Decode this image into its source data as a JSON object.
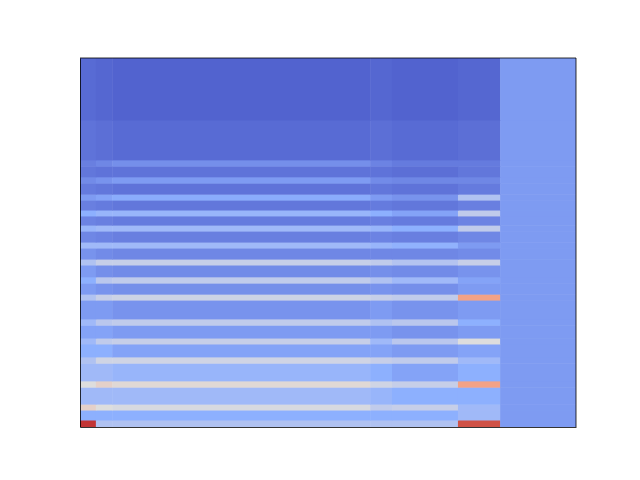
{
  "chart_data": {
    "type": "heatmap",
    "xlim": [
      0,
      100
    ],
    "ylim": [
      0,
      100
    ],
    "zlim": [
      0,
      1
    ],
    "tick_labels": false,
    "x_edges": [
      0,
      3.2,
      6.5,
      58.5,
      62.9,
      76.2,
      84.7,
      100
    ],
    "y_edges": [
      0,
      1.9,
      4.6,
      6.2,
      10.8,
      12.5,
      17.3,
      19.0,
      22.5,
      24.1,
      27.6,
      29.3,
      34.4,
      36.0,
      39.0,
      40.7,
      43.9,
      45.5,
      48.5,
      50.1,
      53.1,
      54.7,
      57.2,
      58.8,
      61.5,
      63.1,
      66.1,
      67.8,
      70.7,
      72.4,
      83.2,
      100
    ],
    "values": [
      [
        0.95,
        0.35,
        0.35,
        0.35,
        0.35,
        0.9,
        0.2
      ],
      [
        0.25,
        0.25,
        0.25,
        0.25,
        0.25,
        0.3,
        0.2
      ],
      [
        0.55,
        0.5,
        0.48,
        0.4,
        0.42,
        0.3,
        0.2
      ],
      [
        0.3,
        0.3,
        0.3,
        0.28,
        0.25,
        0.25,
        0.2
      ],
      [
        0.5,
        0.55,
        0.52,
        0.45,
        0.42,
        0.72,
        0.2
      ],
      [
        0.3,
        0.3,
        0.28,
        0.25,
        0.22,
        0.25,
        0.2
      ],
      [
        0.35,
        0.45,
        0.45,
        0.42,
        0.4,
        0.3,
        0.2
      ],
      [
        0.25,
        0.25,
        0.22,
        0.22,
        0.2,
        0.22,
        0.2
      ],
      [
        0.3,
        0.4,
        0.42,
        0.3,
        0.38,
        0.5,
        0.2
      ],
      [
        0.22,
        0.22,
        0.2,
        0.2,
        0.18,
        0.2,
        0.2
      ],
      [
        0.3,
        0.38,
        0.4,
        0.35,
        0.38,
        0.25,
        0.2
      ],
      [
        0.2,
        0.2,
        0.18,
        0.2,
        0.18,
        0.2,
        0.2
      ],
      [
        0.35,
        0.42,
        0.44,
        0.42,
        0.4,
        0.72,
        0.2
      ],
      [
        0.2,
        0.18,
        0.17,
        0.18,
        0.17,
        0.2,
        0.2
      ],
      [
        0.25,
        0.38,
        0.4,
        0.35,
        0.3,
        0.22,
        0.2
      ],
      [
        0.2,
        0.17,
        0.16,
        0.17,
        0.16,
        0.18,
        0.2
      ],
      [
        0.35,
        0.42,
        0.42,
        0.4,
        0.36,
        0.42,
        0.2
      ],
      [
        0.18,
        0.16,
        0.15,
        0.15,
        0.15,
        0.16,
        0.2
      ],
      [
        0.3,
        0.3,
        0.3,
        0.28,
        0.26,
        0.2,
        0.2
      ],
      [
        0.15,
        0.14,
        0.13,
        0.14,
        0.13,
        0.15,
        0.2
      ],
      [
        0.28,
        0.3,
        0.3,
        0.28,
        0.25,
        0.4,
        0.2
      ],
      [
        0.14,
        0.13,
        0.12,
        0.13,
        0.12,
        0.14,
        0.2
      ],
      [
        0.25,
        0.28,
        0.28,
        0.25,
        0.22,
        0.4,
        0.2
      ],
      [
        0.13,
        0.12,
        0.11,
        0.12,
        0.11,
        0.13,
        0.2
      ],
      [
        0.2,
        0.22,
        0.24,
        0.2,
        0.18,
        0.35,
        0.2
      ],
      [
        0.12,
        0.11,
        0.1,
        0.11,
        0.1,
        0.12,
        0.2
      ],
      [
        0.16,
        0.18,
        0.2,
        0.16,
        0.15,
        0.15,
        0.2
      ],
      [
        0.11,
        0.1,
        0.1,
        0.1,
        0.09,
        0.11,
        0.2
      ],
      [
        0.13,
        0.15,
        0.17,
        0.14,
        0.12,
        0.12,
        0.2
      ],
      [
        0.1,
        0.09,
        0.08,
        0.09,
        0.08,
        0.09,
        0.2
      ],
      [
        0.08,
        0.07,
        0.06,
        0.07,
        0.06,
        0.07,
        0.2
      ]
    ]
  }
}
